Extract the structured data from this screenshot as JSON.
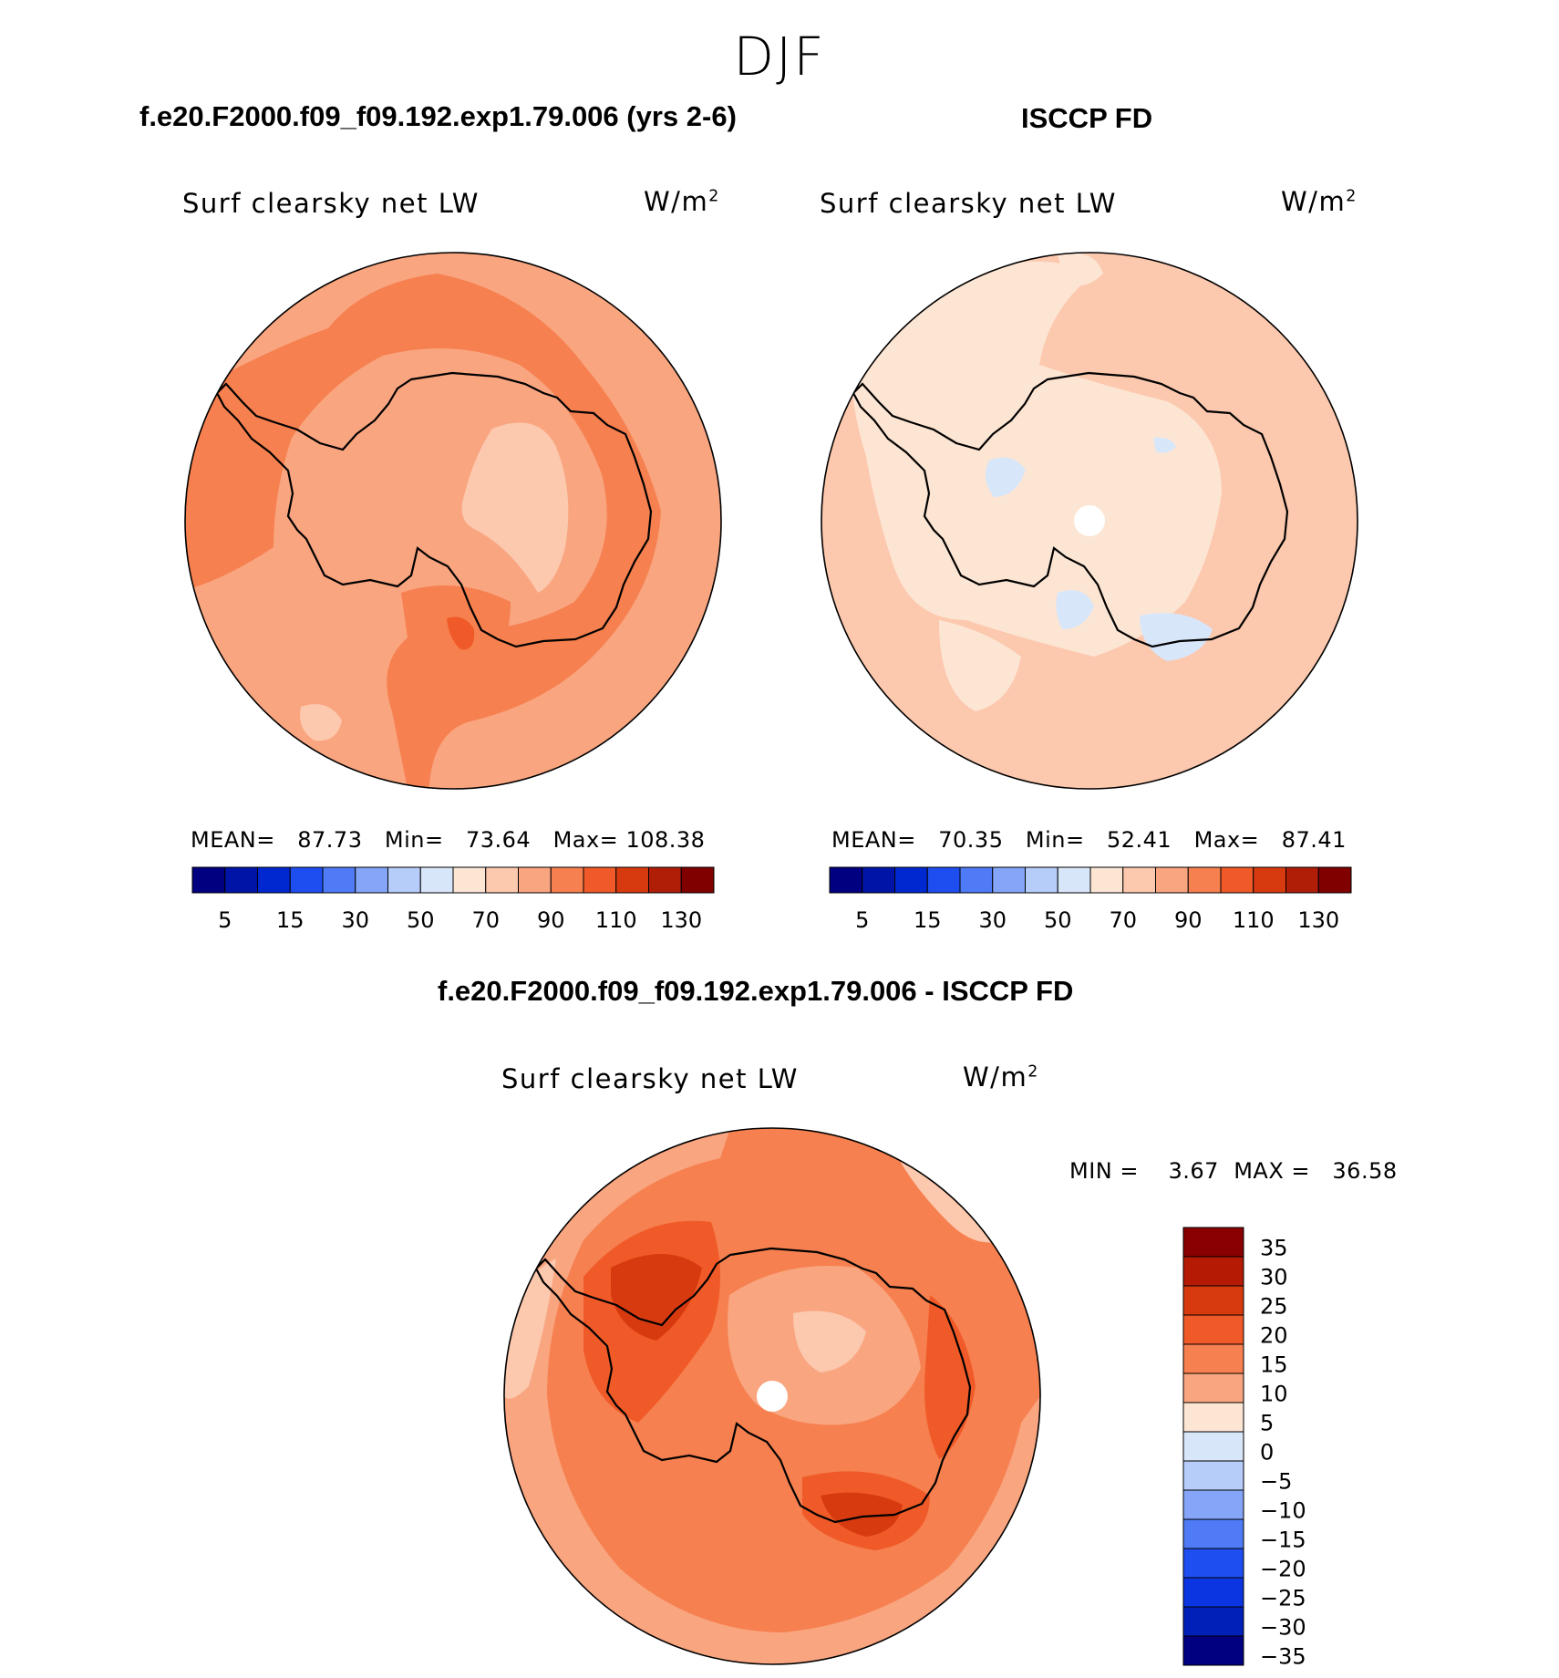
{
  "season": "DJF",
  "panels": [
    {
      "title": "f.e20.F2000.f09_f09.192.exp1.79.006 (yrs 2-6)",
      "variable": "Surf clearsky net LW",
      "units": "W/m",
      "units_exp": "2",
      "stats": {
        "mean_label": "MEAN=",
        "mean": "87.73",
        "min_label": "Min=",
        "min": "73.64",
        "max_label": "Max=",
        "max": "108.38"
      }
    },
    {
      "title": "ISCCP FD",
      "variable": "Surf clearsky net LW",
      "units": "W/m",
      "units_exp": "2",
      "stats": {
        "mean_label": "MEAN=",
        "mean": "70.35",
        "min_label": "Min=",
        "min": "52.41",
        "max_label": "Max=",
        "max": "87.41"
      }
    },
    {
      "title": "f.e20.F2000.f09_f09.192.exp1.79.006 - ISCCP FD",
      "variable": "Surf clearsky net LW",
      "units": "W/m",
      "units_exp": "2",
      "stats": {
        "min_label": "MIN =",
        "min": "3.67",
        "max_label": "MAX =",
        "max": "36.58"
      }
    }
  ],
  "chart_data": [
    {
      "type": "heatmap",
      "projection": "south-polar-stereographic",
      "colorbar": {
        "orientation": "horizontal",
        "colors": [
          "#000080",
          "#0015a8",
          "#0028d0",
          "#1e4ef0",
          "#4f7cf6",
          "#85a6f8",
          "#b6ccf9",
          "#d8e6fa",
          "#fde5d3",
          "#fcc8ae",
          "#f9a580",
          "#f6804f",
          "#f05a28",
          "#d83a10",
          "#b01e08",
          "#800000"
        ],
        "tick_labels": [
          "5",
          "15",
          "30",
          "50",
          "70",
          "90",
          "110",
          "130"
        ]
      },
      "pole_hole": false
    },
    {
      "type": "heatmap",
      "projection": "south-polar-stereographic",
      "colorbar": {
        "orientation": "horizontal",
        "colors": [
          "#000080",
          "#0015a8",
          "#0028d0",
          "#1e4ef0",
          "#4f7cf6",
          "#85a6f8",
          "#b6ccf9",
          "#d8e6fa",
          "#fde5d3",
          "#fcc8ae",
          "#f9a580",
          "#f6804f",
          "#f05a28",
          "#d83a10",
          "#b01e08",
          "#800000"
        ],
        "tick_labels": [
          "5",
          "15",
          "30",
          "50",
          "70",
          "90",
          "110",
          "130"
        ]
      },
      "pole_hole": true
    },
    {
      "type": "heatmap",
      "projection": "south-polar-stereographic",
      "colorbar": {
        "orientation": "vertical",
        "colors": [
          "#8a0000",
          "#b51a05",
          "#d83a10",
          "#f05a28",
          "#f6804f",
          "#f9a580",
          "#fde5d3",
          "#d8e6fa",
          "#b6ccf9",
          "#85a6f8",
          "#4f7cf6",
          "#1e4ef0",
          "#0a35e0",
          "#0020b8",
          "#000080"
        ],
        "tick_labels": [
          "35",
          "30",
          "25",
          "20",
          "15",
          "10",
          "5",
          "0",
          "−5",
          "−10",
          "−15",
          "−20",
          "−25",
          "−30",
          "−35"
        ]
      },
      "pole_hole": true
    }
  ],
  "colors": {
    "coastline": "#000000",
    "map_base_model": "#f9a580",
    "map_base_obs": "#fcc8ae",
    "map_base_diff": "#f6804f"
  }
}
